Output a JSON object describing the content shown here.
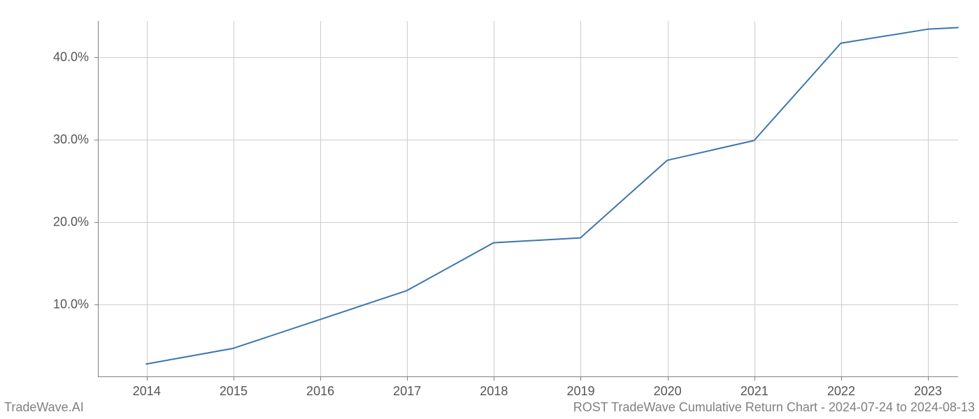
{
  "chart": {
    "type": "line",
    "background_color": "#ffffff",
    "grid_color": "#cccccc",
    "axis_color": "#808080",
    "tick_color": "#808080",
    "label_color": "#555555",
    "label_fontsize": 18,
    "line_color": "#3b75af",
    "line_width": 2,
    "x_ticks": [
      "2014",
      "2015",
      "2016",
      "2017",
      "2018",
      "2019",
      "2020",
      "2021",
      "2022",
      "2023"
    ],
    "x_positions": [
      5.6,
      15.7,
      25.8,
      35.9,
      46.0,
      56.1,
      66.2,
      76.3,
      86.4,
      96.5
    ],
    "y_ticks": [
      "10.0%",
      "20.0%",
      "30.0%",
      "40.0%"
    ],
    "y_positions": [
      79.8,
      56.6,
      33.4,
      10.2
    ],
    "ylim_min": 1.3,
    "ylim_max": 44.4,
    "xlim_min": 2013.45,
    "xlim_max": 2023.35,
    "data_x": [
      2014,
      2015,
      2016,
      2017,
      2018,
      2019,
      2020,
      2021,
      2022,
      2023,
      2023.35
    ],
    "data_y": [
      2.8,
      4.7,
      8.2,
      11.7,
      17.5,
      18.1,
      27.5,
      29.9,
      41.7,
      43.4,
      43.6
    ]
  },
  "watermark": {
    "left": "TradeWave.AI",
    "right": "ROST TradeWave Cumulative Return Chart - 2024-07-24 to 2024-08-13"
  }
}
